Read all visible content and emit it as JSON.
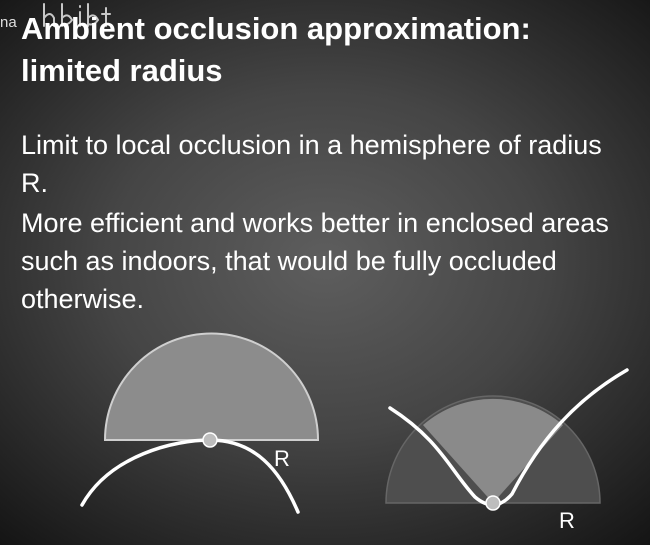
{
  "slide": {
    "overlay_text": "na",
    "title_line1": "Ambient occlusion approximation:",
    "title_line2": "limited radius",
    "bullets": [
      "Limit to local occlusion in a hemisphere of radius R.",
      "More efficient and works better in enclosed areas such as indoors, that would be fully occluded otherwise."
    ]
  },
  "diagrams": {
    "left": {
      "radius_label": "R"
    },
    "right": {
      "radius_label": "R"
    }
  },
  "colors": {
    "hemisphere_left": "#8c8c8c",
    "hemisphere_right_outer": "#4e4e4e",
    "hemisphere_right_visible": "#8a8a8a",
    "surface_line": "#ffffff",
    "point_fill": "#bdbdbd"
  }
}
